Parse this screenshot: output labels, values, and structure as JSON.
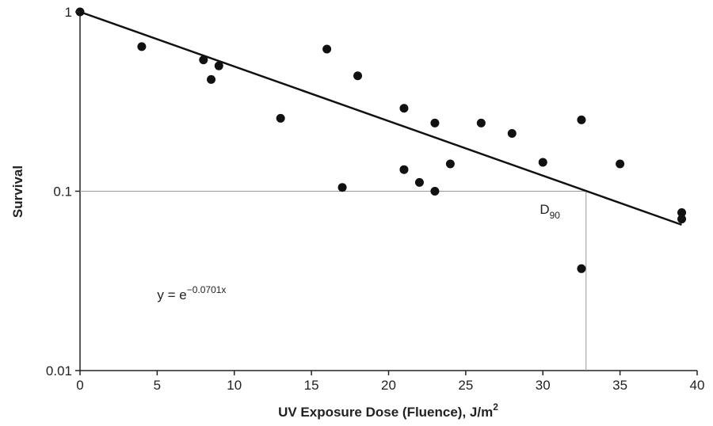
{
  "chart_data": {
    "type": "scatter",
    "xlabel": {
      "main": "UV Exposure Dose (Fluence), J/m",
      "sup": "2"
    },
    "ylabel": "Survival",
    "xlim": [
      0,
      40
    ],
    "ylim": [
      0.01,
      1
    ],
    "yscale": "log",
    "x_ticks": [
      0,
      5,
      10,
      15,
      20,
      25,
      30,
      35,
      40
    ],
    "x_tick_labels": [
      "0",
      "5",
      "10",
      "15",
      "20",
      "25",
      "30",
      "35",
      "40"
    ],
    "y_ticks": [
      0.01,
      0.1,
      1
    ],
    "y_tick_labels": [
      "0.01",
      "0.1",
      "1"
    ],
    "grid": false,
    "points": [
      {
        "x": 0,
        "y": 1.0
      },
      {
        "x": 4,
        "y": 0.64
      },
      {
        "x": 8,
        "y": 0.54
      },
      {
        "x": 8.5,
        "y": 0.42
      },
      {
        "x": 9,
        "y": 0.5
      },
      {
        "x": 13,
        "y": 0.255
      },
      {
        "x": 16,
        "y": 0.62
      },
      {
        "x": 17,
        "y": 0.105
      },
      {
        "x": 18,
        "y": 0.44
      },
      {
        "x": 21,
        "y": 0.29
      },
      {
        "x": 21,
        "y": 0.132
      },
      {
        "x": 22,
        "y": 0.112
      },
      {
        "x": 23,
        "y": 0.24
      },
      {
        "x": 23,
        "y": 0.1
      },
      {
        "x": 24,
        "y": 0.142
      },
      {
        "x": 26,
        "y": 0.24
      },
      {
        "x": 28,
        "y": 0.21
      },
      {
        "x": 30,
        "y": 0.145
      },
      {
        "x": 32.5,
        "y": 0.25
      },
      {
        "x": 32.5,
        "y": 0.037
      },
      {
        "x": 35,
        "y": 0.142
      },
      {
        "x": 39,
        "y": 0.076
      },
      {
        "x": 39,
        "y": 0.07
      }
    ],
    "fit_line": {
      "x": [
        0,
        39
      ],
      "y": [
        1.0,
        0.065
      ]
    },
    "reference_lines": {
      "y": 0.1,
      "x": 32.8
    },
    "equation": {
      "base": "y = e",
      "exponent": "−0.0701x",
      "x": 5,
      "y": 0.025
    },
    "d90_label": {
      "main": "D",
      "sub": "90",
      "x": 29.8,
      "y": 0.075
    }
  }
}
